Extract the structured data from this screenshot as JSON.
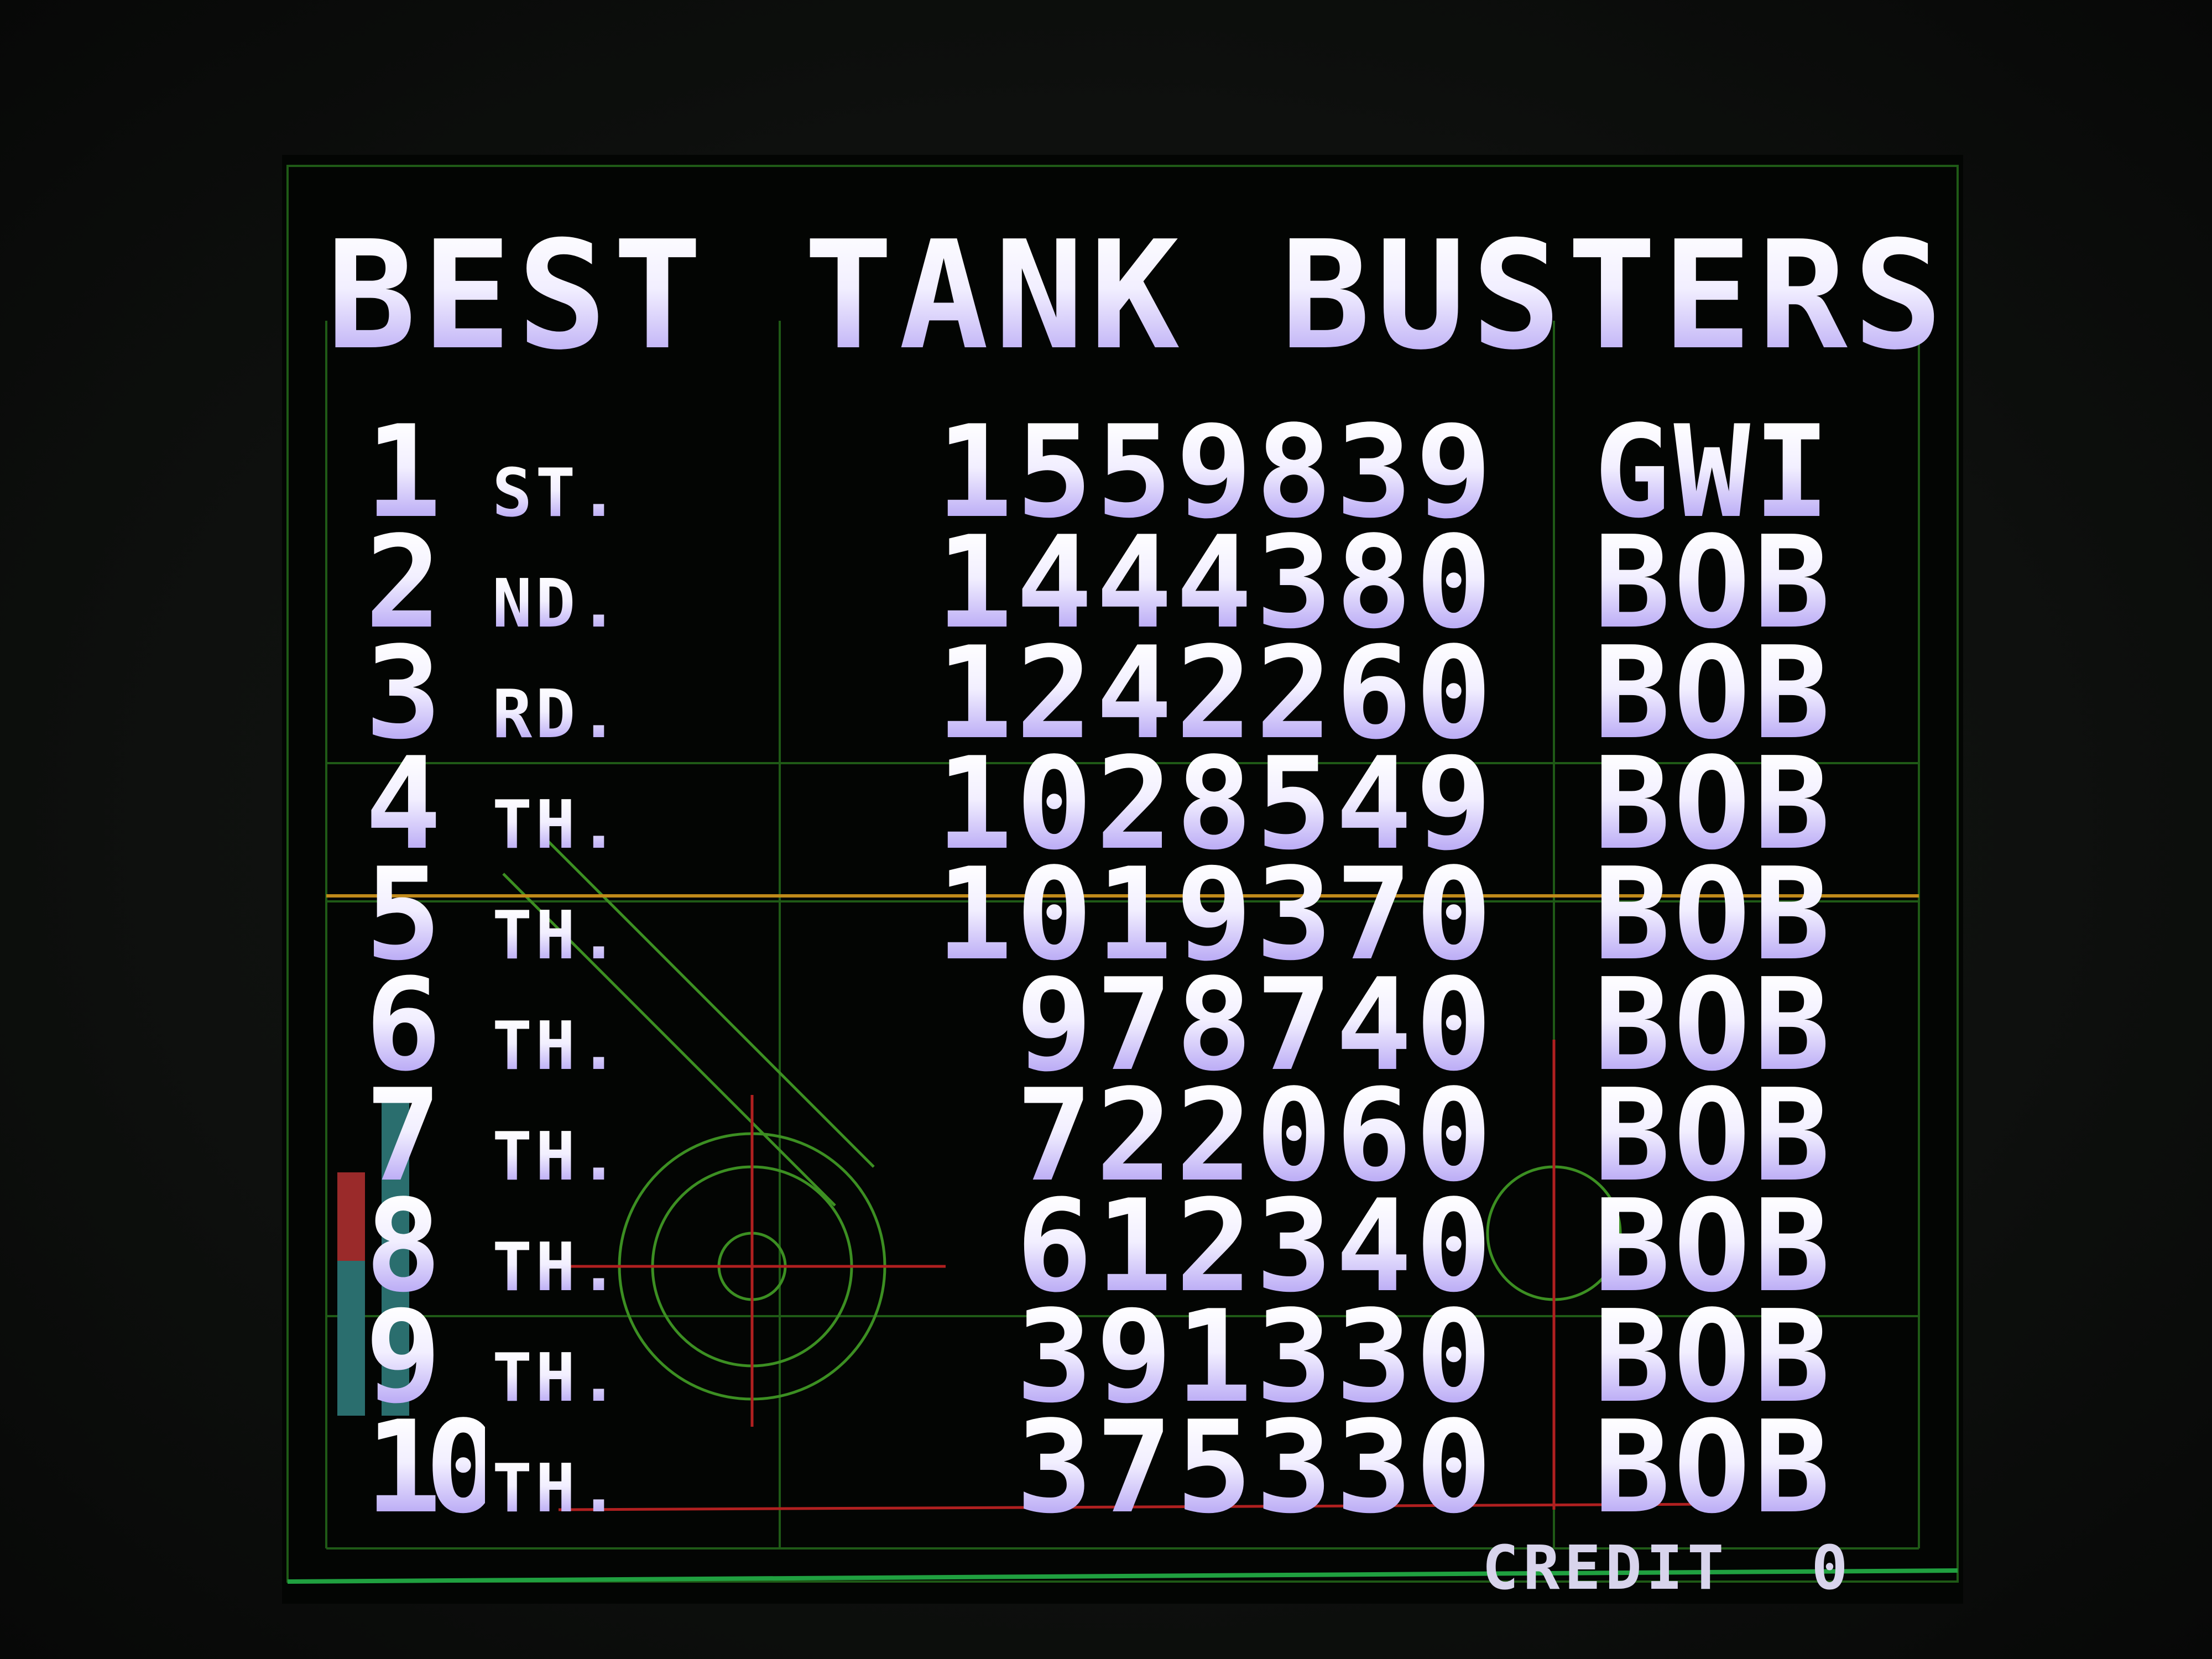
{
  "title": "BEST TANK BUSTERS",
  "rankings": [
    {
      "rank": "1",
      "suffix": "ST.",
      "score": "1559839",
      "name": "GWI"
    },
    {
      "rank": "2",
      "suffix": "ND.",
      "score": "1444380",
      "name": "BOB"
    },
    {
      "rank": "3",
      "suffix": "RD.",
      "score": "1242260",
      "name": "BOB"
    },
    {
      "rank": "4",
      "suffix": "TH.",
      "score": "1028549",
      "name": "BOB"
    },
    {
      "rank": "5",
      "suffix": "TH.",
      "score": "1019370",
      "name": "BOB"
    },
    {
      "rank": "6",
      "suffix": "TH.",
      "score": "978740",
      "name": "BOB"
    },
    {
      "rank": "7",
      "suffix": "TH.",
      "score": "722060",
      "name": "BOB"
    },
    {
      "rank": "8",
      "suffix": "TH.",
      "score": "612340",
      "name": "BOB"
    },
    {
      "rank": "9",
      "suffix": "TH.",
      "score": "391330",
      "name": "BOB"
    },
    {
      "rank": "10",
      "suffix": "TH.",
      "score": "375330",
      "name": "BOB"
    }
  ],
  "credit": {
    "label": "CREDIT",
    "value": "0"
  },
  "colors": {
    "text_top": "#ffffff",
    "text_bottom": "#b3a2f4",
    "grid": "#2f7a1e",
    "accent_line": "#c08a1a",
    "red_line": "#b02020"
  }
}
